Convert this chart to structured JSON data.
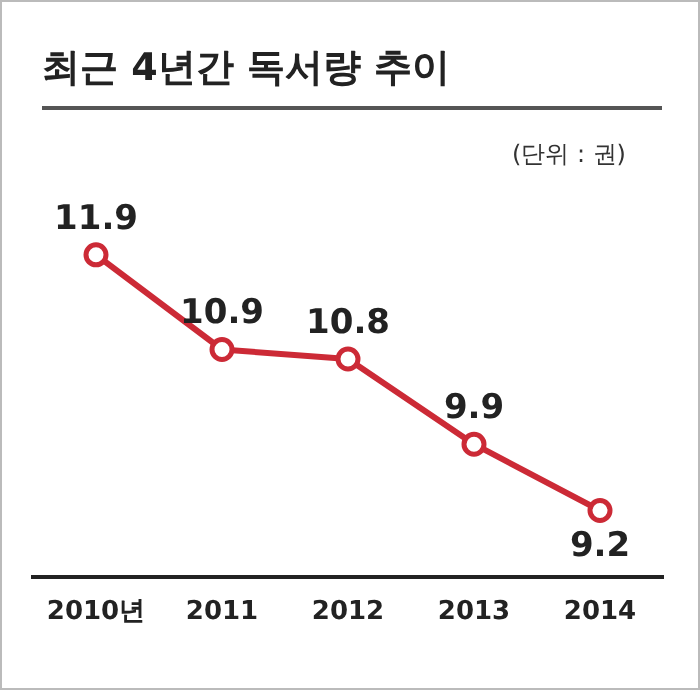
{
  "chart_data": {
    "type": "line",
    "title": "최근 4년간 독서량 추이",
    "annotations": [
      "(단위 : 권)"
    ],
    "categories": [
      "2010년",
      "2011",
      "2012",
      "2013",
      "2014"
    ],
    "series": [
      {
        "color": "#cc2a36",
        "values": [
          11.9,
          10.9,
          10.8,
          9.9,
          9.2
        ]
      }
    ],
    "data_labels": true,
    "marker": "circle",
    "grid": false,
    "legend": false
  }
}
